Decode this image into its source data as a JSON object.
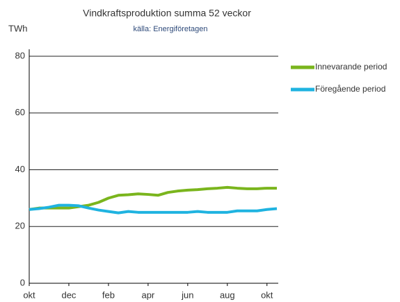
{
  "chart_data": {
    "type": "line",
    "title": "Vindkraftsproduktion  summa 52 veckor",
    "subtitle": "källa: Energiföretagen",
    "y_label": "TWh",
    "categories": [
      "okt",
      null,
      null,
      null,
      "dec",
      null,
      null,
      null,
      "feb",
      null,
      null,
      null,
      "apr",
      null,
      null,
      null,
      "jun",
      null,
      null,
      null,
      "aug",
      null,
      null,
      null,
      "okt",
      null
    ],
    "series": [
      {
        "name": "Innevarande period",
        "color": "#7ab51d",
        "values": [
          26,
          26.5,
          26.5,
          26.5,
          26.5,
          27,
          27.5,
          28.5,
          30,
          31,
          31.2,
          31.5,
          31.3,
          31,
          32,
          32.5,
          32.8,
          33,
          33.3,
          33.5,
          33.8,
          33.5,
          33.3,
          33.3,
          33.5,
          33.5
        ]
      },
      {
        "name": "Föregående period",
        "color": "#1fb3e0",
        "values": [
          26,
          26.3,
          26.8,
          27.5,
          27.5,
          27.3,
          26.5,
          25.8,
          25.3,
          24.8,
          25.3,
          25,
          25,
          25,
          25,
          25,
          25,
          25.3,
          25,
          25,
          25,
          25.5,
          25.5,
          25.5,
          26,
          26.3
        ]
      }
    ],
    "ylim": [
      0,
      80
    ],
    "yticks": [
      0,
      20,
      40,
      60,
      80
    ],
    "grid": true,
    "legend": "right"
  }
}
